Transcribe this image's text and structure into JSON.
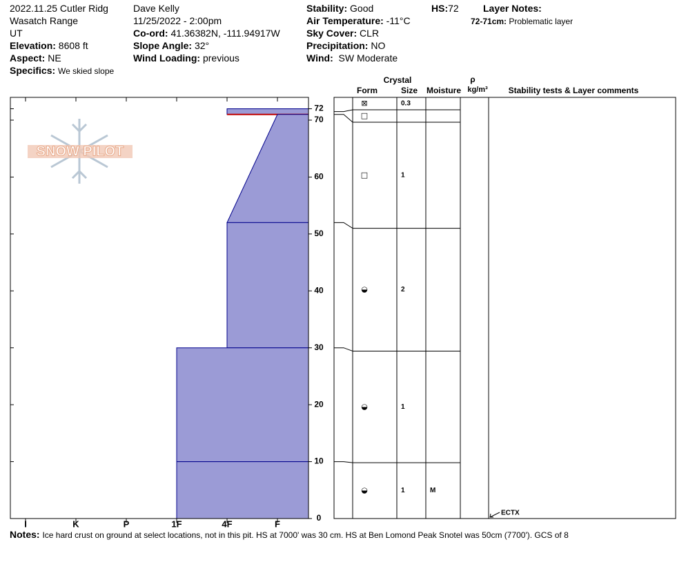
{
  "header": {
    "site": "2022.11.25 Cutler Ridg",
    "range": "Wasatch Range",
    "state": "UT",
    "elevation": {
      "label": "Elevation:",
      "value": "8608 ft"
    },
    "aspect": {
      "label": "Aspect:",
      "value": "NE"
    },
    "specifics": {
      "label": "Specifics:",
      "value": "We skied slope"
    },
    "observer": "Dave Kelly",
    "datetime": "11/25/2022 - 2:00pm",
    "coord": {
      "label": "Co-ord:",
      "value": "41.36382N, -111.94917W"
    },
    "slope": {
      "label": "Slope Angle:",
      "value": "32°"
    },
    "wind_loading": {
      "label": "Wind Loading:",
      "value": "previous"
    },
    "stability": {
      "label": "Stability:",
      "value": "Good"
    },
    "air_temp": {
      "label": "Air Temperature:",
      "value": "-11°C"
    },
    "sky": {
      "label": "Sky Cover:",
      "value": "CLR"
    },
    "precip": {
      "label": "Precipitation:",
      "value": "NO"
    },
    "wind": {
      "label": "Wind:",
      "value": "SW Moderate"
    },
    "hs": {
      "label": "HS:",
      "value": "72"
    },
    "layer_notes": {
      "label": "Layer Notes:",
      "items": [
        {
          "label": "72-71cm:",
          "value": "Problematic layer"
        }
      ]
    }
  },
  "logo": "SNOW PILOT",
  "chart_data": {
    "type": "hardness",
    "categories": [
      "I",
      "K",
      "P",
      "1F",
      "4F",
      "F"
    ],
    "ylim": [
      0,
      74
    ],
    "yticks": [
      0,
      10,
      20,
      30,
      40,
      50,
      60,
      70,
      72
    ],
    "color": "#9b9bd6",
    "edge_color": "#00008b",
    "problem_color": "#c00000",
    "layers": [
      {
        "top": 72,
        "bottom": 71,
        "hardness_top": "4F",
        "hardness_bottom": "4F",
        "problematic": true
      },
      {
        "top": 71,
        "bottom": 52,
        "hardness_top": "F",
        "hardness_bottom": "4F"
      },
      {
        "top": 52,
        "bottom": 30,
        "hardness_top": "4F",
        "hardness_bottom": "4F"
      },
      {
        "top": 30,
        "bottom": 10,
        "hardness_top": "1F",
        "hardness_bottom": "1F"
      },
      {
        "top": 10,
        "bottom": 0,
        "hardness_top": "1F",
        "hardness_bottom": "1F"
      }
    ]
  },
  "layer_table": {
    "headers": {
      "crystal": "Crystal",
      "form": "Form",
      "size": "Size",
      "moisture": "Moisture",
      "density_symbol": "ρ",
      "density_unit": "kg/m³",
      "comments": "Stability tests & Layer comments"
    },
    "rows": [
      {
        "top": 72,
        "bottom": 71.5,
        "form": "⊠",
        "size": "0.3"
      },
      {
        "top": 71.5,
        "bottom": 71,
        "form": "□"
      },
      {
        "top": 71,
        "bottom": 52,
        "form": "□",
        "size": "1"
      },
      {
        "top": 52,
        "bottom": 30,
        "form": "◒",
        "size": "2"
      },
      {
        "top": 30,
        "bottom": 10,
        "form": "◒",
        "size": "1"
      },
      {
        "top": 10,
        "bottom": 0,
        "form": "◒",
        "size": "1",
        "moisture": "M"
      }
    ]
  },
  "stability_tests": [
    {
      "depth": 0,
      "label": "ECTX"
    }
  ],
  "notes": {
    "label": "Notes:",
    "value": "Ice hard crust on ground at select locations, not in this pit. HS at 7000' was 30 cm. HS at Ben Lomond Peak Snotel was 50cm (7700').  GCS of 8"
  }
}
